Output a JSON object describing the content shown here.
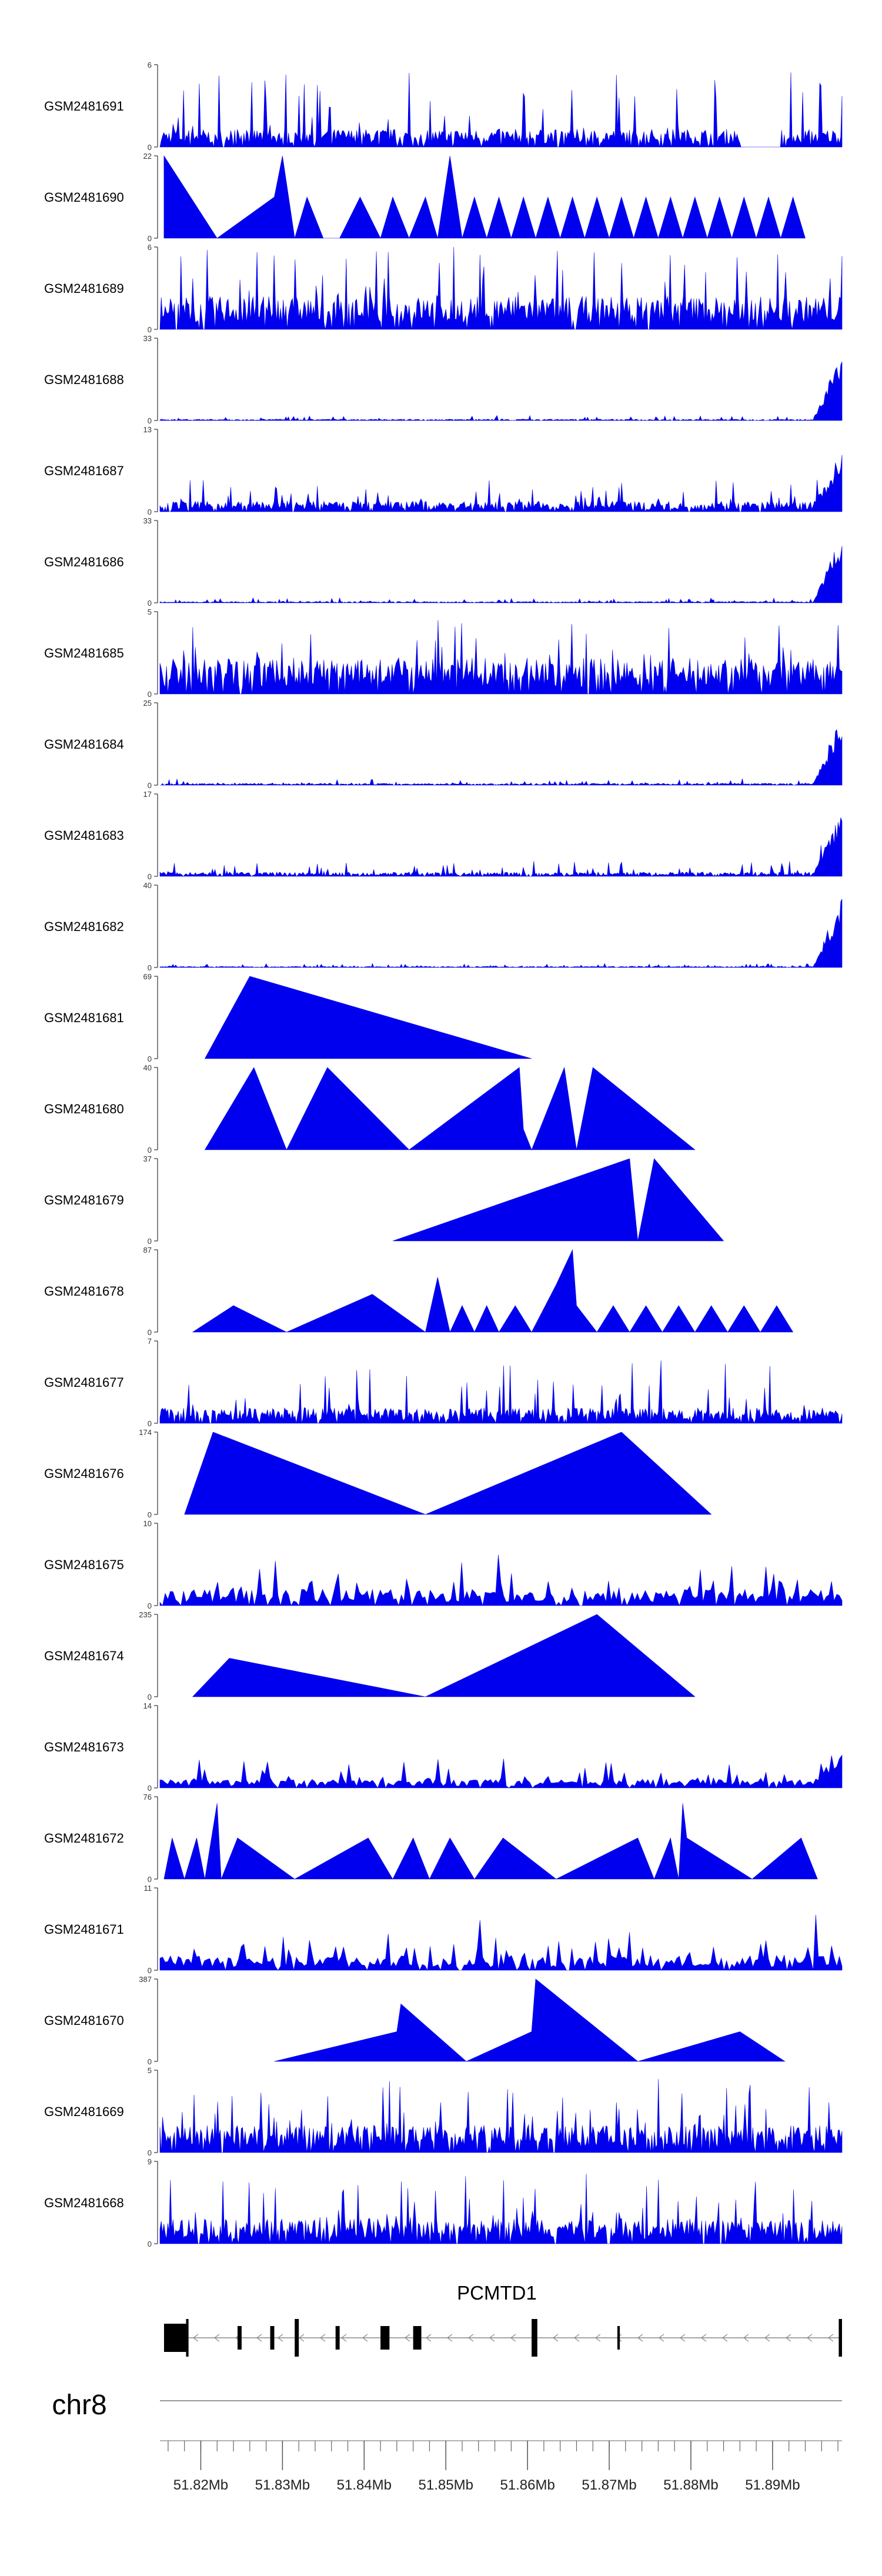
{
  "chart_data": {
    "type": "area",
    "chromosome": "chr8",
    "xlim": [
      51.815,
      51.8985
    ],
    "x_ticks": [
      51.82,
      51.83,
      51.84,
      51.85,
      51.86,
      51.87,
      51.88,
      51.89
    ],
    "x_tick_labels": [
      "51.82Mb",
      "51.83Mb",
      "51.84Mb",
      "51.85Mb",
      "51.86Mb",
      "51.87Mb",
      "51.88Mb",
      "51.89Mb"
    ],
    "colors": {
      "track": "#0000ee",
      "axis": "#333333",
      "gene": "#000000"
    },
    "tracks": [
      {
        "name": "GSM2481691",
        "ymax_label": "6",
        "ymax": 6,
        "style": "dense",
        "base": 1.2,
        "spike": 4.5,
        "right_boost": 0,
        "gaps": [
          [
            51.886,
            51.891
          ]
        ]
      },
      {
        "name": "GSM2481690",
        "ymax_label": "22",
        "ymax": 22,
        "style": "sparse",
        "points": [
          [
            51.8155,
            22
          ],
          [
            51.822,
            0
          ],
          [
            51.829,
            11
          ],
          [
            51.83,
            22
          ],
          [
            51.8315,
            0
          ],
          [
            51.833,
            11
          ],
          [
            51.835,
            0
          ],
          [
            51.837,
            0
          ],
          [
            51.8395,
            11
          ],
          [
            51.842,
            0
          ],
          [
            51.8435,
            11
          ],
          [
            51.8455,
            0
          ],
          [
            51.8475,
            11
          ],
          [
            51.849,
            0
          ],
          [
            51.8505,
            22
          ],
          [
            51.852,
            0
          ],
          [
            51.8535,
            11
          ],
          [
            51.855,
            0
          ],
          [
            51.8565,
            11
          ],
          [
            51.858,
            0
          ],
          [
            51.8595,
            11
          ],
          [
            51.861,
            0
          ],
          [
            51.8625,
            11
          ],
          [
            51.864,
            0
          ],
          [
            51.8655,
            11
          ],
          [
            51.867,
            0
          ],
          [
            51.8685,
            11
          ],
          [
            51.87,
            0
          ],
          [
            51.8715,
            11
          ],
          [
            51.873,
            0
          ],
          [
            51.8745,
            11
          ],
          [
            51.876,
            0
          ],
          [
            51.8775,
            11
          ],
          [
            51.879,
            0
          ],
          [
            51.8805,
            11
          ],
          [
            51.882,
            0
          ],
          [
            51.8835,
            11
          ],
          [
            51.885,
            0
          ],
          [
            51.8865,
            11
          ],
          [
            51.888,
            0
          ],
          [
            51.8895,
            11
          ],
          [
            51.891,
            0
          ],
          [
            51.8925,
            11
          ],
          [
            51.894,
            0
          ]
        ]
      },
      {
        "name": "GSM2481689",
        "ymax_label": "6",
        "ymax": 6,
        "style": "dense",
        "base": 2.2,
        "spike": 4.0,
        "right_boost": 0,
        "gaps": []
      },
      {
        "name": "GSM2481688",
        "ymax_label": "33",
        "ymax": 33,
        "style": "dense",
        "base": 0.5,
        "spike": 1.5,
        "right_boost": 28,
        "gaps": []
      },
      {
        "name": "GSM2481687",
        "ymax_label": "13",
        "ymax": 13,
        "style": "dense",
        "base": 1.5,
        "spike": 4.0,
        "right_boost": 8,
        "gaps": []
      },
      {
        "name": "GSM2481686",
        "ymax_label": "33",
        "ymax": 33,
        "style": "dense",
        "base": 0.5,
        "spike": 1.5,
        "right_boost": 28,
        "gaps": []
      },
      {
        "name": "GSM2481685",
        "ymax_label": "5",
        "ymax": 5,
        "style": "dense",
        "base": 2.0,
        "spike": 3.0,
        "right_boost": 0,
        "gaps": []
      },
      {
        "name": "GSM2481684",
        "ymax_label": "25",
        "ymax": 25,
        "style": "dense",
        "base": 0.5,
        "spike": 1.5,
        "right_boost": 22,
        "gaps": []
      },
      {
        "name": "GSM2481683",
        "ymax_label": "17",
        "ymax": 17,
        "style": "dense",
        "base": 0.8,
        "spike": 2.5,
        "right_boost": 14,
        "gaps": []
      },
      {
        "name": "GSM2481682",
        "ymax_label": "40",
        "ymax": 40,
        "style": "dense",
        "base": 0.5,
        "spike": 1.5,
        "right_boost": 35,
        "gaps": []
      },
      {
        "name": "GSM2481681",
        "ymax_label": "69",
        "ymax": 69,
        "style": "sparse",
        "points": [
          [
            51.8205,
            0
          ],
          [
            51.826,
            69
          ],
          [
            51.8605,
            0
          ]
        ]
      },
      {
        "name": "GSM2481680",
        "ymax_label": "40",
        "ymax": 40,
        "style": "sparse",
        "points": [
          [
            51.8205,
            0
          ],
          [
            51.8265,
            40
          ],
          [
            51.8305,
            0
          ],
          [
            51.8355,
            40
          ],
          [
            51.8455,
            0
          ],
          [
            51.859,
            40
          ],
          [
            51.8595,
            10
          ],
          [
            51.8605,
            0
          ],
          [
            51.8645,
            40
          ],
          [
            51.866,
            0
          ],
          [
            51.868,
            40
          ],
          [
            51.8805,
            0
          ]
        ]
      },
      {
        "name": "GSM2481679",
        "ymax_label": "37",
        "ymax": 37,
        "style": "sparse",
        "points": [
          [
            51.8435,
            0
          ],
          [
            51.8725,
            37
          ],
          [
            51.8735,
            0
          ],
          [
            51.8755,
            37
          ],
          [
            51.884,
            0
          ]
        ]
      },
      {
        "name": "GSM2481678",
        "ymax_label": "87",
        "ymax": 87,
        "style": "sparse",
        "points": [
          [
            51.819,
            0
          ],
          [
            51.824,
            28
          ],
          [
            51.8305,
            0
          ],
          [
            51.841,
            40
          ],
          [
            51.8475,
            0
          ],
          [
            51.849,
            58
          ],
          [
            51.8505,
            0
          ],
          [
            51.852,
            28
          ],
          [
            51.8535,
            0
          ],
          [
            51.855,
            28
          ],
          [
            51.8565,
            0
          ],
          [
            51.8585,
            28
          ],
          [
            51.8605,
            0
          ],
          [
            51.8635,
            50
          ],
          [
            51.8655,
            87
          ],
          [
            51.866,
            28
          ],
          [
            51.8685,
            0
          ],
          [
            51.8705,
            28
          ],
          [
            51.8725,
            0
          ],
          [
            51.8745,
            28
          ],
          [
            51.8765,
            0
          ],
          [
            51.8785,
            28
          ],
          [
            51.8805,
            0
          ],
          [
            51.8825,
            28
          ],
          [
            51.8845,
            0
          ],
          [
            51.8865,
            28
          ],
          [
            51.8885,
            0
          ],
          [
            51.8905,
            28
          ],
          [
            51.8925,
            0
          ]
        ]
      },
      {
        "name": "GSM2481677",
        "ymax_label": "7",
        "ymax": 7,
        "style": "dense",
        "base": 1.2,
        "spike": 4.5,
        "right_boost": 0,
        "gaps": []
      },
      {
        "name": "GSM2481676",
        "ymax_label": "174",
        "ymax": 174,
        "style": "sparse",
        "points": [
          [
            51.818,
            0
          ],
          [
            51.8215,
            174
          ],
          [
            51.8475,
            0
          ],
          [
            51.8715,
            174
          ],
          [
            51.8825,
            0
          ]
        ]
      },
      {
        "name": "GSM2481675",
        "ymax_label": "10",
        "ymax": 10,
        "style": "mixed",
        "base": 1.8,
        "spike": 5.5,
        "right_boost": 0,
        "gaps": []
      },
      {
        "name": "GSM2481674",
        "ymax_label": "235",
        "ymax": 235,
        "style": "sparse",
        "points": [
          [
            51.819,
            0
          ],
          [
            51.8235,
            110
          ],
          [
            51.8475,
            0
          ],
          [
            51.8685,
            235
          ],
          [
            51.8805,
            0
          ]
        ]
      },
      {
        "name": "GSM2481673",
        "ymax_label": "14",
        "ymax": 14,
        "style": "mixed",
        "base": 1.3,
        "spike": 4.0,
        "right_boost": 6,
        "gaps": []
      },
      {
        "name": "GSM2481672",
        "ymax_label": "76",
        "ymax": 76,
        "style": "sparse",
        "points": [
          [
            51.8155,
            0
          ],
          [
            51.8165,
            38
          ],
          [
            51.818,
            0
          ],
          [
            51.8195,
            38
          ],
          [
            51.8205,
            0
          ],
          [
            51.822,
            70
          ],
          [
            51.8225,
            0
          ],
          [
            51.8245,
            38
          ],
          [
            51.8315,
            0
          ],
          [
            51.8405,
            38
          ],
          [
            51.8435,
            0
          ],
          [
            51.846,
            38
          ],
          [
            51.848,
            0
          ],
          [
            51.8505,
            38
          ],
          [
            51.8535,
            0
          ],
          [
            51.857,
            38
          ],
          [
            51.8635,
            0
          ],
          [
            51.8735,
            38
          ],
          [
            51.8755,
            0
          ],
          [
            51.8775,
            38
          ],
          [
            51.8785,
            0
          ],
          [
            51.879,
            70
          ],
          [
            51.8795,
            38
          ],
          [
            51.8875,
            0
          ],
          [
            51.8935,
            38
          ],
          [
            51.8955,
            0
          ]
        ]
      },
      {
        "name": "GSM2481671",
        "ymax_label": "11",
        "ymax": 11,
        "style": "mixed",
        "base": 1.8,
        "spike": 7.0,
        "right_boost": 0,
        "gaps": []
      },
      {
        "name": "GSM2481670",
        "ymax_label": "387",
        "ymax": 387,
        "style": "sparse",
        "points": [
          [
            51.829,
            0
          ],
          [
            51.844,
            140
          ],
          [
            51.8445,
            270
          ],
          [
            51.8525,
            0
          ],
          [
            51.8605,
            140
          ],
          [
            51.861,
            387
          ],
          [
            51.8735,
            0
          ],
          [
            51.886,
            140
          ],
          [
            51.8915,
            0
          ]
        ]
      },
      {
        "name": "GSM2481669",
        "ymax_label": "5",
        "ymax": 5,
        "style": "dense",
        "base": 1.5,
        "spike": 3.2,
        "right_boost": 0,
        "gaps": []
      },
      {
        "name": "GSM2481668",
        "ymax_label": "9",
        "ymax": 9,
        "style": "dense",
        "base": 2.5,
        "spike": 5.5,
        "right_boost": 0,
        "gaps": []
      }
    ],
    "gene": {
      "name": "PCMTD1",
      "strand": "-",
      "start": 51.8155,
      "end": 51.8985,
      "exons": [
        [
          51.8155,
          51.8182
        ],
        [
          51.8182,
          51.8185
        ],
        [
          51.8245,
          51.825
        ],
        [
          51.8285,
          51.829
        ],
        [
          51.8315,
          51.832
        ],
        [
          51.8365,
          51.837
        ],
        [
          51.842,
          51.8431
        ],
        [
          51.846,
          51.847
        ],
        [
          51.8605,
          51.8612
        ],
        [
          51.871,
          51.8713
        ],
        [
          51.8981,
          51.8985
        ]
      ],
      "tall_exons": [
        [
          51.8182,
          51.8185
        ],
        [
          51.8315,
          51.832
        ],
        [
          51.8605,
          51.8612
        ],
        [
          51.8981,
          51.8985
        ]
      ]
    }
  }
}
